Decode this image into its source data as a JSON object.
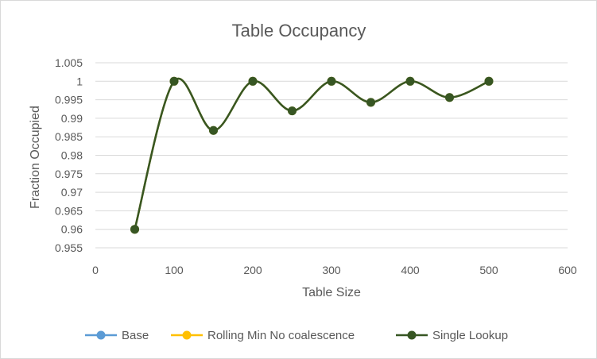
{
  "chart_data": {
    "type": "line",
    "title": "Table Occupancy",
    "xlabel": "Table Size",
    "ylabel": "Fraction Occupied",
    "xlim": [
      0,
      600
    ],
    "ylim": [
      0.955,
      1.005
    ],
    "x_ticks": [
      "0",
      "100",
      "200",
      "300",
      "400",
      "500",
      "600"
    ],
    "y_ticks": [
      "0.955",
      "0.96",
      "0.965",
      "0.97",
      "0.975",
      "0.98",
      "0.985",
      "0.99",
      "0.995",
      "1",
      "1.005"
    ],
    "grid": true,
    "legend_position": "bottom",
    "smooth": true,
    "series": [
      {
        "name": "Base",
        "color": "#5b9bd5",
        "x": [
          50,
          100,
          150,
          200,
          250,
          300,
          350,
          400,
          450,
          500
        ],
        "values": [
          0.96,
          1,
          0.9867,
          1,
          0.992,
          1,
          0.9943,
          1,
          0.9956,
          1
        ]
      },
      {
        "name": "Rolling Min No coalescence",
        "color": "#ffc000",
        "x": [
          50,
          100,
          150,
          200,
          250,
          300,
          350,
          400,
          450,
          500
        ],
        "values": [
          0.96,
          1,
          0.9867,
          1,
          0.992,
          1,
          0.9943,
          1,
          0.9956,
          1
        ]
      },
      {
        "name": "Single Lookup",
        "color": "#375623",
        "x": [
          50,
          100,
          150,
          200,
          250,
          300,
          350,
          400,
          450,
          500
        ],
        "values": [
          0.96,
          1,
          0.9867,
          1,
          0.992,
          1,
          0.9943,
          1,
          0.9956,
          1
        ]
      }
    ]
  }
}
